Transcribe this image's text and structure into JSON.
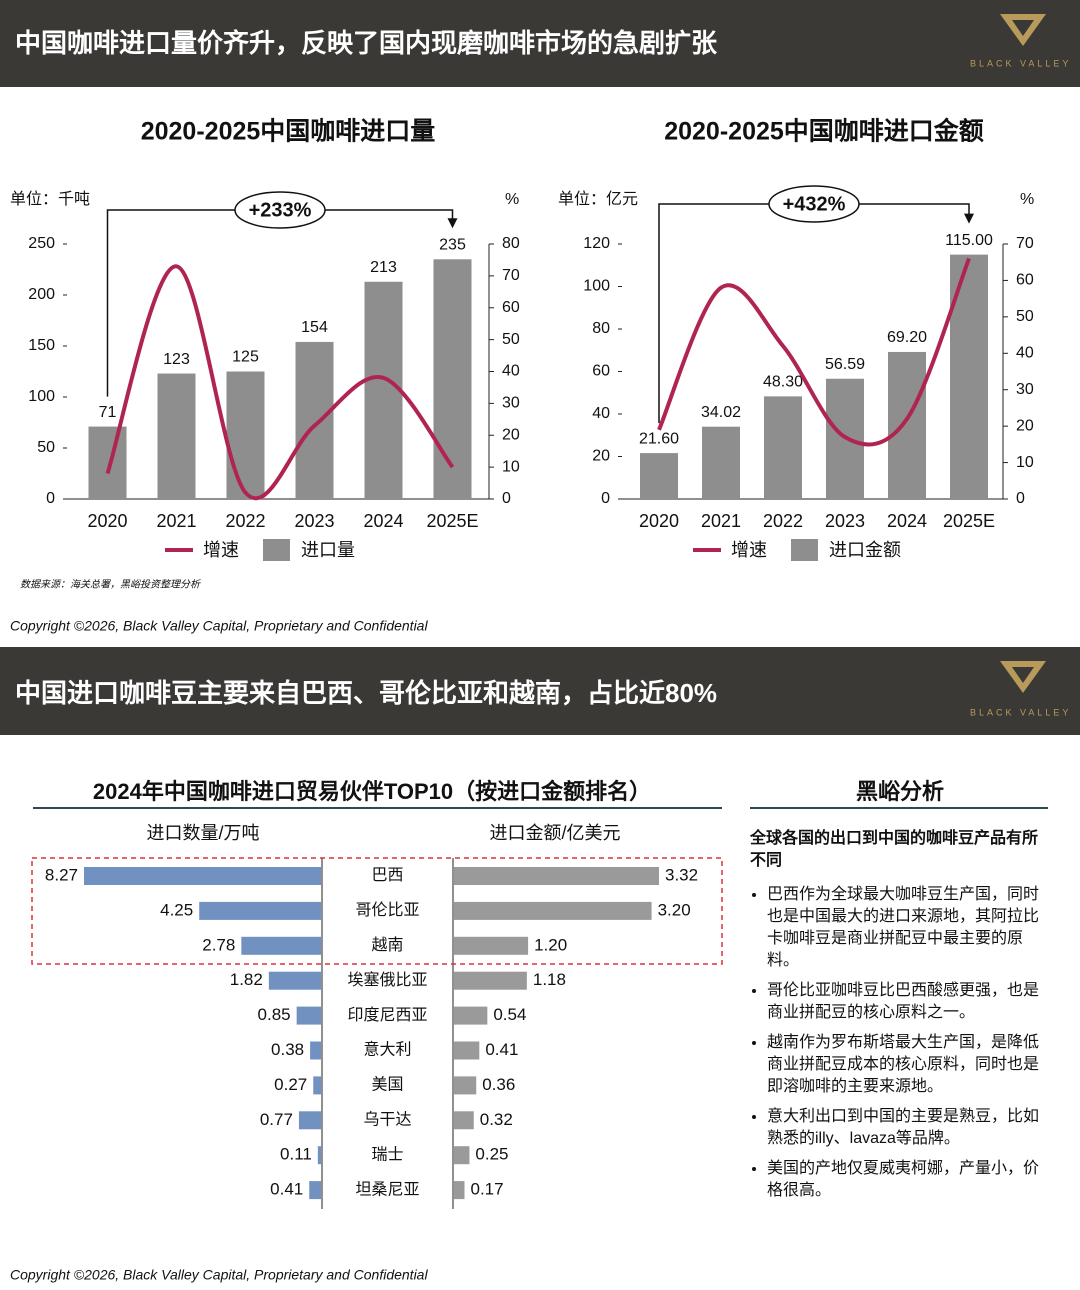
{
  "slides": [
    {
      "header": "中国咖啡进口量价齐升，反映了国内现磨咖啡市场的急剧扩张",
      "logo": "BLACK VALLEY",
      "source": "数据来源：海关总署，黑峪投资整理分析",
      "copyright": "Copyright ©2026, Black Valley Capital, Proprietary and Confidential"
    },
    {
      "header": "中国进口咖啡豆主要来自巴西、哥伦比亚和越南，占比近80%",
      "logo": "BLACK VALLEY",
      "analysis": {
        "title": "黑峪分析",
        "subtitle": "全球各国的出口到中国的咖啡豆产品有所不同",
        "bullets": [
          "巴西作为全球最大咖啡豆生产国，同时也是中国最大的进口来源地，其阿拉比卡咖啡豆是商业拼配豆中最主要的原料。",
          "哥伦比亚咖啡豆比巴西酸感更强，也是商业拼配豆的核心原料之一。",
          "越南作为罗布斯塔最大生产国，是降低商业拼配豆成本的核心原料，同时也是即溶咖啡的主要来源地。",
          "意大利出口到中国的主要是熟豆，比如熟悉的illy、lavaza等品牌。",
          "美国的产地仅夏威夷柯娜，产量小，价格很高。"
        ]
      },
      "copyright": "Copyright ©2026, Black Valley Capital, Proprietary and Confidential"
    }
  ],
  "chart_data": [
    {
      "type": "combo",
      "title": "2020-2025中国咖啡进口量",
      "y_label": "单位：千吨",
      "y2_label": "%",
      "annotation": "+233%",
      "categories": [
        "2020",
        "2021",
        "2022",
        "2023",
        "2024",
        "2025E"
      ],
      "series": [
        {
          "name": "进口量",
          "color": "#8e8e8e",
          "values": [
            71,
            123,
            125,
            154,
            213,
            235
          ]
        },
        {
          "name": "增速",
          "color": "#b0254f",
          "axis": "y2",
          "values": [
            8,
            73,
            2,
            23,
            38,
            10
          ]
        }
      ],
      "ylim": [
        0,
        250
      ],
      "yticks": [
        0,
        50,
        100,
        150,
        200,
        250
      ],
      "y2lim": [
        0,
        80
      ],
      "y2ticks": [
        0,
        10,
        20,
        30,
        40,
        50,
        60,
        70,
        80
      ],
      "legend": "bottom"
    },
    {
      "type": "combo",
      "title": "2020-2025中国咖啡进口金额",
      "y_label": "单位：亿元",
      "y2_label": "%",
      "annotation": "+432%",
      "categories": [
        "2020",
        "2021",
        "2022",
        "2023",
        "2024",
        "2025E"
      ],
      "series": [
        {
          "name": "进口金额",
          "color": "#8e8e8e",
          "values": [
            21.6,
            34.02,
            48.3,
            56.59,
            69.2,
            115.0
          ],
          "value_labels": [
            "21.60",
            "34.02",
            "48.30",
            "56.59",
            "69.20",
            "115.00"
          ]
        },
        {
          "name": "增速",
          "color": "#b0254f",
          "axis": "y2",
          "values": [
            19,
            58,
            42,
            17,
            22,
            66
          ]
        }
      ],
      "ylim": [
        0,
        120
      ],
      "yticks": [
        0,
        20,
        40,
        60,
        80,
        100,
        120
      ],
      "y2lim": [
        0,
        70
      ],
      "y2ticks": [
        0,
        10,
        20,
        30,
        40,
        50,
        60,
        70
      ],
      "legend": "bottom"
    },
    {
      "type": "butterfly",
      "title": "2024年中国咖啡进口贸易伙伴TOP10（按进口金额排名）",
      "categories": [
        "巴西",
        "哥伦比亚",
        "越南",
        "埃塞俄比亚",
        "印度尼西亚",
        "意大利",
        "美国",
        "乌干达",
        "瑞士",
        "坦桑尼亚"
      ],
      "series": [
        {
          "name": "进口数量/万吨",
          "color": "#7191c1",
          "values": [
            8.27,
            4.25,
            2.78,
            1.82,
            0.85,
            0.38,
            0.27,
            0.77,
            0.11,
            0.41
          ]
        },
        {
          "name": "进口金额/亿美元",
          "color": "#9a9a9a",
          "values": [
            3.32,
            3.2,
            1.2,
            1.18,
            0.54,
            0.41,
            0.36,
            0.32,
            0.25,
            0.17
          ],
          "value_labels": [
            "3.32",
            "3.20",
            "1.20",
            "1.18",
            "0.54",
            "0.41",
            "0.36",
            "0.32",
            "0.25",
            "0.17"
          ]
        }
      ]
    }
  ]
}
